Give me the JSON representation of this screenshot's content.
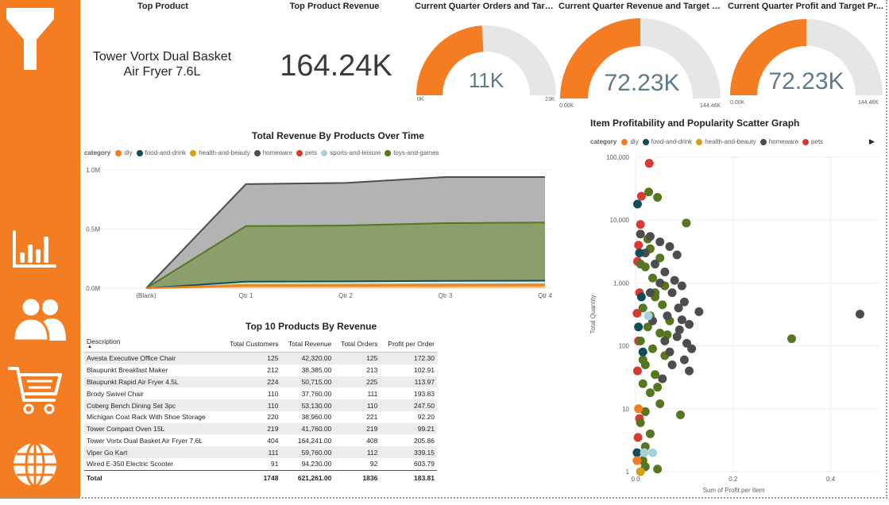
{
  "colors": {
    "accent": "#f47d21",
    "gauge_track": "#e6e6e6",
    "gauge_value": "#5f7b8a",
    "diy": "#f47d21",
    "food-and-drink": "#0f4c5c",
    "health-and-beauty": "#d4a017",
    "homeware": "#4d4d4d",
    "pets": "#d63b33",
    "sports-and-leisure": "#a7d3d8",
    "toys-and-games": "#56761f"
  },
  "sidebar": {
    "icons": [
      "filter-icon",
      "bar-chart-icon",
      "users-icon",
      "cart-icon",
      "globe-icon"
    ]
  },
  "kpis": {
    "top_product": {
      "title": "Top Product",
      "value": "Tower Vortx Dual Basket Air Fryer 7.6L"
    },
    "top_product_revenue": {
      "title": "Top Product Revenue",
      "value": "164.24K"
    },
    "gauges": [
      {
        "title": "Current Quarter Orders and Target...",
        "value": "11K",
        "min_label": "0K",
        "max_label": "23K",
        "fill": 0.48
      },
      {
        "title": "Current Quarter Revenue and Target Re...",
        "value": "72.23K",
        "min_label": "0.00K",
        "max_label": "144.46K",
        "fill": 0.5
      },
      {
        "title": "Current Quarter Profit and Target Pr...",
        "value": "72.23K",
        "min_label": "0.00K",
        "max_label": "144.46K",
        "fill": 0.5
      }
    ]
  },
  "chart_data": [
    {
      "type": "area",
      "title": "Total Revenue By Products Over Time",
      "legend_title": "category",
      "legend": [
        "diy",
        "food-and-drink",
        "health-and-beauty",
        "homeware",
        "pets",
        "sports-and-leisure",
        "toys-and-games"
      ],
      "legend_placement": "top",
      "categories": [
        "(Blank)",
        "Qtr 1",
        "Qtr 2",
        "Qtr 3",
        "Qtr 4"
      ],
      "y_ticks": [
        "0.0M",
        "0.5M",
        "1.0M"
      ],
      "ylim": [
        0,
        1000000
      ],
      "grid": true,
      "series": [
        {
          "name": "homeware",
          "values": [
            0,
            880000,
            890000,
            940000,
            940000
          ]
        },
        {
          "name": "toys-and-games",
          "values": [
            0,
            525000,
            530000,
            550000,
            555000
          ]
        },
        {
          "name": "food-and-drink",
          "values": [
            0,
            55000,
            58000,
            62000,
            64000
          ]
        },
        {
          "name": "health-and-beauty",
          "values": [
            0,
            30000,
            31000,
            33000,
            34000
          ]
        },
        {
          "name": "diy",
          "values": [
            0,
            20000,
            21000,
            22000,
            23000
          ]
        }
      ]
    },
    {
      "type": "scatter",
      "title": "Item Profitability and Popularity Scatter Graph",
      "legend_title": "category",
      "legend": [
        "diy",
        "food-and-drink",
        "health-and-beauty",
        "homeware",
        "pets"
      ],
      "legend_placement": "top",
      "xlabel": "Sum of Profit per Item",
      "ylabel": "Total Quantity",
      "x_ticks": [
        "0.0",
        "0.2",
        "0.4"
      ],
      "y_ticks": [
        "1",
        "10",
        "100",
        "1,000",
        "10,000",
        "100,000"
      ],
      "xlim": [
        0,
        0.5
      ],
      "ylim": [
        1,
        100000
      ],
      "y_scale": "log",
      "grid": true,
      "series": [
        {
          "name": "pets",
          "points": [
            [
              0.028,
              80000
            ],
            [
              0.012,
              24000
            ],
            [
              0.01,
              8500
            ],
            [
              0.006,
              4000
            ],
            [
              0.004,
              2200
            ],
            [
              0.008,
              700
            ],
            [
              0.003,
              330
            ],
            [
              0.006,
              120
            ],
            [
              0.004,
              40
            ],
            [
              0.008,
              7
            ],
            [
              0.005,
              3.5
            ]
          ]
        },
        {
          "name": "toys-and-games",
          "points": [
            [
              0.027,
              28000
            ],
            [
              0.045,
              23000
            ],
            [
              0.104,
              9000
            ],
            [
              0.32,
              130
            ],
            [
              0.092,
              8
            ],
            [
              0.03,
              3500
            ],
            [
              0.05,
              2500
            ],
            [
              0.02,
              1800
            ],
            [
              0.06,
              900
            ],
            [
              0.04,
              600
            ],
            [
              0.015,
              400
            ],
            [
              0.03,
              300
            ],
            [
              0.07,
              250
            ],
            [
              0.025,
              200
            ],
            [
              0.05,
              160
            ],
            [
              0.01,
              120
            ],
            [
              0.035,
              90
            ],
            [
              0.06,
              70
            ],
            [
              0.02,
              50
            ],
            [
              0.04,
              35
            ],
            [
              0.015,
              25
            ],
            [
              0.03,
              18
            ],
            [
              0.05,
              12
            ],
            [
              0.02,
              9
            ],
            [
              0.01,
              6
            ],
            [
              0.03,
              4
            ],
            [
              0.02,
              2.5
            ],
            [
              0.015,
              1.5
            ],
            [
              0.045,
              1.1
            ],
            [
              0.02,
              1.2
            ],
            [
              0.01,
              2000
            ],
            [
              0.035,
              1200
            ],
            [
              0.055,
              450
            ],
            [
              0.025,
              5000
            ],
            [
              0.04,
              700
            ],
            [
              0.065,
              150
            ],
            [
              0.015,
              60
            ],
            [
              0.045,
              22
            ]
          ]
        },
        {
          "name": "homeware",
          "points": [
            [
              0.46,
              320
            ],
            [
              0.01,
              6000
            ],
            [
              0.03,
              5500
            ],
            [
              0.05,
              4500
            ],
            [
              0.07,
              3800
            ],
            [
              0.085,
              2800
            ],
            [
              0.02,
              3000
            ],
            [
              0.04,
              2000
            ],
            [
              0.06,
              1500
            ],
            [
              0.08,
              1100
            ],
            [
              0.095,
              900
            ],
            [
              0.075,
              700
            ],
            [
              0.1,
              500
            ],
            [
              0.088,
              400
            ],
            [
              0.13,
              350
            ],
            [
              0.065,
              300
            ],
            [
              0.11,
              220
            ],
            [
              0.09,
              180
            ],
            [
              0.085,
              140
            ],
            [
              0.115,
              90
            ],
            [
              0.07,
              80
            ],
            [
              0.1,
              60
            ],
            [
              0.11,
              40
            ],
            [
              0.03,
              700
            ],
            [
              0.05,
              1000
            ],
            [
              0.035,
              250
            ],
            [
              0.06,
              120
            ],
            [
              0.075,
              50
            ],
            [
              0.055,
              30
            ],
            [
              0.095,
              260
            ],
            [
              0.105,
              110
            ]
          ]
        },
        {
          "name": "food-and-drink",
          "points": [
            [
              0.004,
              18000
            ],
            [
              0.008,
              3000
            ],
            [
              0.012,
              600
            ],
            [
              0.006,
              200
            ],
            [
              0.015,
              80
            ],
            [
              0.003,
              2
            ]
          ]
        },
        {
          "name": "sports-and-leisure",
          "points": [
            [
              0.018,
              2
            ],
            [
              0.035,
              2
            ],
            [
              0.026,
              300
            ]
          ]
        },
        {
          "name": "diy",
          "points": [
            [
              0.003,
              1.5
            ],
            [
              0.006,
              10
            ]
          ]
        },
        {
          "name": "health-and-beauty",
          "points": [
            [
              0.01,
              1
            ]
          ]
        }
      ]
    }
  ],
  "table": {
    "title": "Top 10 Products By Revenue",
    "headers": [
      "Description",
      "Total Customers",
      "Total Revenue",
      "Total Orders",
      "Profit per Order"
    ],
    "rows": [
      [
        "Avesta Executive Office Chair",
        "125",
        "42,320.00",
        "125",
        "172.30"
      ],
      [
        "Blaupunkt Breakfast Maker",
        "212",
        "38,385.00",
        "213",
        "102.91"
      ],
      [
        "Blaupunkt Rapid Air Fryer 4.5L",
        "224",
        "50,715.00",
        "225",
        "113.97"
      ],
      [
        "Brody Swivel Chair",
        "110",
        "37,760.00",
        "111",
        "193.83"
      ],
      [
        "Coberg Bench Dining Set 3pc",
        "110",
        "53,130.00",
        "110",
        "247.50"
      ],
      [
        "Michigan Coat Rack With Shoe Storage",
        "220",
        "38,960.00",
        "221",
        "92.20"
      ],
      [
        "Tower Compact Oven 15L",
        "219",
        "41,760.00",
        "219",
        "99.21"
      ],
      [
        "Tower Vortx Dual Basket Air Fryer 7.6L",
        "404",
        "164,241.00",
        "408",
        "205.86"
      ],
      [
        "Viper Go Kart",
        "111",
        "59,760.00",
        "112",
        "339.15"
      ],
      [
        "Wired E-350 Electric Scooter",
        "91",
        "94,230.00",
        "92",
        "603.79"
      ]
    ],
    "total": [
      "Total",
      "1748",
      "621,261.00",
      "1836",
      "183.81"
    ]
  }
}
